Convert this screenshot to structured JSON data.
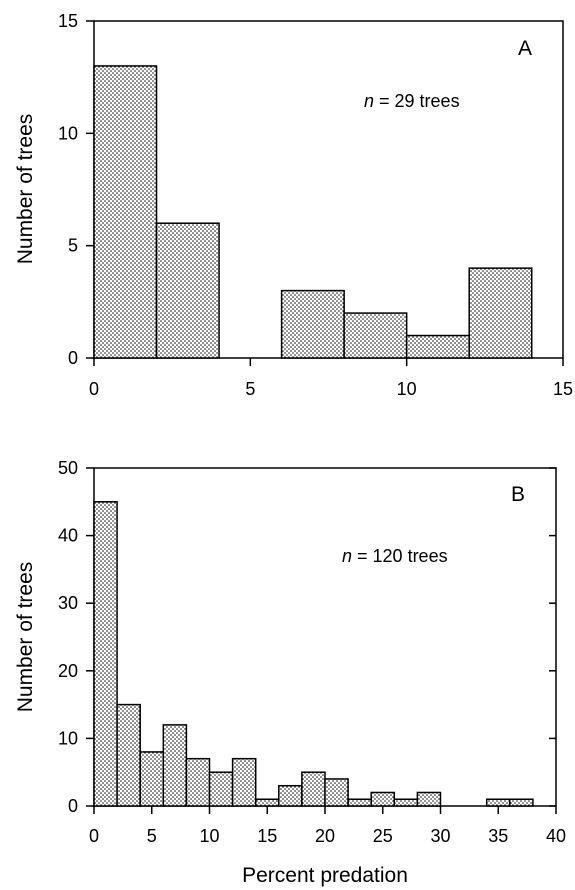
{
  "chart_data": [
    {
      "type": "bar",
      "panel_label": "A",
      "annotation": {
        "italic": "n",
        "rest": " = 29 trees"
      },
      "xlabel": "",
      "ylabel": "Number of trees",
      "xlim": [
        0,
        15
      ],
      "ylim": [
        0,
        15
      ],
      "xticks": [
        "0",
        "5",
        "10",
        "15"
      ],
      "yticks": [
        "0",
        "5",
        "10",
        "15"
      ],
      "bin_width": 2,
      "bins": [
        {
          "x0": 0,
          "x1": 2,
          "value": 13
        },
        {
          "x0": 2,
          "x1": 4,
          "value": 6
        },
        {
          "x0": 4,
          "x1": 6,
          "value": 0
        },
        {
          "x0": 6,
          "x1": 8,
          "value": 3
        },
        {
          "x0": 8,
          "x1": 10,
          "value": 2
        },
        {
          "x0": 10,
          "x1": 12,
          "value": 1
        },
        {
          "x0": 12,
          "x1": 14,
          "value": 4
        }
      ],
      "fill": "stippled",
      "grid": false
    },
    {
      "type": "bar",
      "panel_label": "B",
      "annotation": {
        "italic": "n",
        "rest": " = 120 trees"
      },
      "xlabel": "Percent predation",
      "ylabel": "Number of trees",
      "xlim": [
        0,
        40
      ],
      "ylim": [
        0,
        50
      ],
      "xticks": [
        "0",
        "5",
        "10",
        "15",
        "20",
        "25",
        "30",
        "35",
        "40"
      ],
      "yticks": [
        "0",
        "10",
        "20",
        "30",
        "40",
        "50"
      ],
      "bin_width": 2,
      "bins": [
        {
          "x0": 0,
          "x1": 2,
          "value": 45
        },
        {
          "x0": 2,
          "x1": 4,
          "value": 15
        },
        {
          "x0": 4,
          "x1": 6,
          "value": 8
        },
        {
          "x0": 6,
          "x1": 8,
          "value": 12
        },
        {
          "x0": 8,
          "x1": 10,
          "value": 7
        },
        {
          "x0": 10,
          "x1": 12,
          "value": 5
        },
        {
          "x0": 12,
          "x1": 14,
          "value": 7
        },
        {
          "x0": 14,
          "x1": 16,
          "value": 1
        },
        {
          "x0": 16,
          "x1": 18,
          "value": 3
        },
        {
          "x0": 18,
          "x1": 20,
          "value": 5
        },
        {
          "x0": 20,
          "x1": 22,
          "value": 4
        },
        {
          "x0": 22,
          "x1": 24,
          "value": 1
        },
        {
          "x0": 24,
          "x1": 26,
          "value": 2
        },
        {
          "x0": 26,
          "x1": 28,
          "value": 1
        },
        {
          "x0": 28,
          "x1": 30,
          "value": 2
        },
        {
          "x0": 30,
          "x1": 32,
          "value": 0
        },
        {
          "x0": 32,
          "x1": 34,
          "value": 0
        },
        {
          "x0": 34,
          "x1": 36,
          "value": 1
        },
        {
          "x0": 36,
          "x1": 38,
          "value": 1
        }
      ],
      "fill": "stippled",
      "grid": false
    }
  ]
}
